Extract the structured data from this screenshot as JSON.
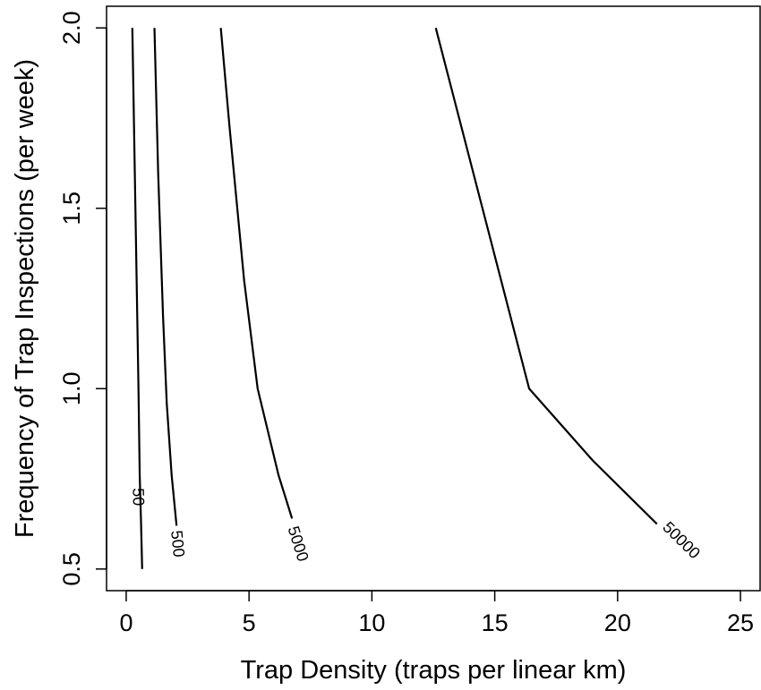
{
  "chart_data": {
    "type": "line",
    "title": "",
    "xlabel": "Trap Density (traps per linear km)",
    "ylabel": "Frequency of Trap Inspections (per week)",
    "xlim": [
      -0.8,
      25.8
    ],
    "ylim": [
      0.44,
      2.06
    ],
    "xticks": [
      0,
      5,
      10,
      15,
      20,
      25
    ],
    "yticks": [
      0.5,
      1.0,
      1.5,
      2.0
    ],
    "xtick_labels": [
      "0",
      "5",
      "10",
      "15",
      "20",
      "25"
    ],
    "ytick_labels": [
      "0.5",
      "1.0",
      "1.5",
      "2.0"
    ],
    "grid": false,
    "series": [
      {
        "name": "50",
        "label_at": {
          "x": 0.5,
          "y": 0.7
        },
        "points": [
          [
            0.25,
            2.0
          ],
          [
            0.35,
            1.6
          ],
          [
            0.45,
            1.2
          ],
          [
            0.5,
            1.0
          ],
          [
            0.55,
            0.76
          ],
          [
            0.6,
            0.64
          ],
          [
            0.65,
            0.5
          ]
        ]
      },
      {
        "name": "500",
        "label_at": {
          "x": 2.1,
          "y": 0.57
        },
        "points": [
          [
            1.15,
            2.0
          ],
          [
            1.3,
            1.6
          ],
          [
            1.5,
            1.2
          ],
          [
            1.65,
            0.96
          ],
          [
            1.85,
            0.76
          ],
          [
            2.05,
            0.62
          ]
        ]
      },
      {
        "name": "5000",
        "label_at": {
          "x": 7.0,
          "y": 0.57
        },
        "points": [
          [
            3.85,
            2.0
          ],
          [
            4.2,
            1.73
          ],
          [
            4.8,
            1.3
          ],
          [
            5.35,
            1.0
          ],
          [
            6.2,
            0.76
          ],
          [
            6.75,
            0.64
          ]
        ]
      },
      {
        "name": "50000",
        "label_at": {
          "x": 22.6,
          "y": 0.58
        },
        "points": [
          [
            12.6,
            2.0
          ],
          [
            14.5,
            1.5
          ],
          [
            16.4,
            1.0
          ],
          [
            19.0,
            0.8
          ],
          [
            21.6,
            0.625
          ]
        ]
      }
    ]
  }
}
